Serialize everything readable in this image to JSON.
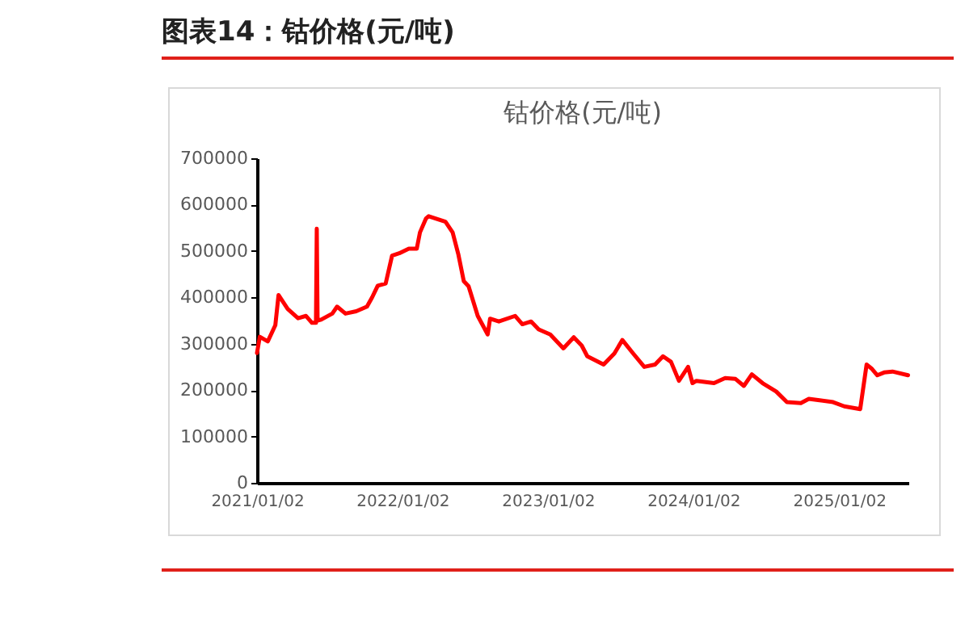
{
  "chart_data": {
    "type": "line",
    "title": "图表14：钴价格(元/吨)",
    "subtitle": "钴价格(元/吨)",
    "x": [
      "2021-01-02",
      "2021-01-09",
      "2021-01-29",
      "2021-02-17",
      "2021-02-25",
      "2021-03-20",
      "2021-04-15",
      "2021-05-05",
      "2021-05-20",
      "2021-05-30",
      "2021-06-01",
      "2021-06-03",
      "2021-06-12",
      "2021-07-10",
      "2021-07-22",
      "2021-08-12",
      "2021-09-08",
      "2021-10-05",
      "2021-10-18",
      "2021-11-01",
      "2021-11-21",
      "2021-12-07",
      "2021-12-25",
      "2022-01-18",
      "2022-02-07",
      "2022-02-15",
      "2022-03-02",
      "2022-03-09",
      "2022-04-20",
      "2022-05-08",
      "2022-05-22",
      "2022-06-05",
      "2022-06-17",
      "2022-07-10",
      "2022-08-04",
      "2022-08-10",
      "2022-09-01",
      "2022-10-12",
      "2022-10-30",
      "2022-11-21",
      "2022-12-10",
      "2023-01-08",
      "2023-02-10",
      "2023-03-08",
      "2023-03-28",
      "2023-04-11",
      "2023-05-22",
      "2023-06-18",
      "2023-07-08",
      "2023-08-04",
      "2023-09-01",
      "2023-09-28",
      "2023-10-18",
      "2023-11-07",
      "2023-11-27",
      "2023-12-20",
      "2023-12-31",
      "2024-01-10",
      "2024-02-23",
      "2024-03-22",
      "2024-04-17",
      "2024-05-08",
      "2024-05-28",
      "2024-06-24",
      "2024-07-28",
      "2024-08-24",
      "2024-09-28",
      "2024-10-18",
      "2024-11-14",
      "2024-12-18",
      "2025-01-15",
      "2025-02-24",
      "2025-03-12",
      "2025-03-24",
      "2025-04-08",
      "2025-04-25",
      "2025-05-16",
      "2025-06-24"
    ],
    "series": [
      {
        "color": "#ff0000",
        "values": [
          280000,
          315000,
          305000,
          340000,
          405000,
          375000,
          355000,
          360000,
          345000,
          345000,
          548000,
          350000,
          352000,
          365000,
          380000,
          365000,
          370000,
          380000,
          400000,
          425000,
          430000,
          490000,
          495000,
          505000,
          505000,
          540000,
          570000,
          575000,
          563000,
          540000,
          494000,
          435000,
          424000,
          360000,
          320000,
          354000,
          348000,
          360000,
          342000,
          348000,
          331000,
          320000,
          290000,
          314000,
          296000,
          273000,
          255000,
          279000,
          308000,
          279000,
          250000,
          255000,
          273000,
          261000,
          220000,
          250000,
          215000,
          220000,
          215000,
          226000,
          224000,
          209000,
          234000,
          215000,
          197000,
          174000,
          172000,
          181000,
          178000,
          174000,
          165000,
          159000,
          255000,
          247000,
          232000,
          238000,
          240000,
          232000
        ]
      }
    ],
    "xlim": [
      "2021-01-02",
      "2025-06-25"
    ],
    "xticks": [
      {
        "value": "2021-01-02",
        "label": "2021/01/02"
      },
      {
        "value": "2022-01-02",
        "label": "2022/01/02"
      },
      {
        "value": "2023-01-02",
        "label": "2023/01/02"
      },
      {
        "value": "2024-01-02",
        "label": "2024/01/02"
      },
      {
        "value": "2025-01-02",
        "label": "2025/01/02"
      }
    ],
    "ylim": [
      0,
      700000
    ],
    "yticks": [
      0,
      100000,
      200000,
      300000,
      400000,
      500000,
      600000,
      700000
    ],
    "grid": false,
    "legend": false,
    "marker": "none",
    "line_style": "solid"
  }
}
